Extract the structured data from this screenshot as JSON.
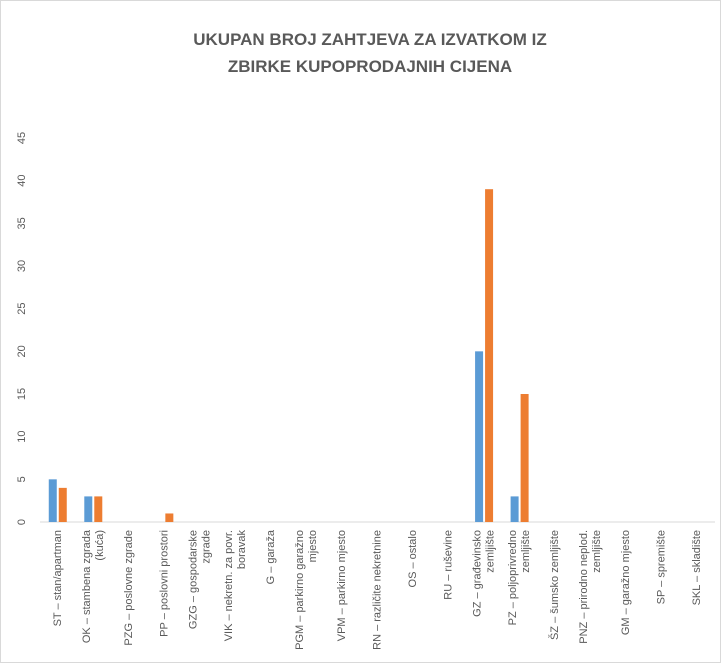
{
  "chart_data": {
    "type": "bar",
    "title": "UKUPAN BROJ ZAHTJEVA ZA IZVATKOM IZ ZBIRKE KUPOPRODAJNIH CIJENA",
    "categories": [
      "ST – stan/apartman",
      "OK – stambena zgrada (kuća)",
      "PZG – poslovne zgrade",
      "PP – poslovni prostori",
      "GZG – gospodarske zgrade",
      "VIK – nekretn. za povr. boravak",
      "G – garaža",
      "PGM – parkirno garažno mjesto",
      "VPM – parkirno mjesto",
      "RN – različite nekretnine",
      "OS – ostalo",
      "RU – ruševine",
      "GZ – građevinsko zemljište",
      "PZ – poljoprivredno zemljište",
      "ŠZ – šumsko zemljište",
      "PNZ – prirodno neplod. zemljište",
      "GM – garažno mjesto",
      "SP – spremište",
      "SKL – skladište"
    ],
    "series": [
      {
        "color": "#5b9bd5",
        "values": [
          5,
          3,
          0,
          0,
          0,
          0,
          0,
          0,
          0,
          0,
          0,
          0,
          20,
          3,
          0,
          0,
          0,
          0,
          0
        ]
      },
      {
        "color": "#ed7d31",
        "values": [
          4,
          3,
          0,
          1,
          0,
          0,
          0,
          0,
          0,
          0,
          0,
          0,
          39,
          15,
          0,
          0,
          0,
          0,
          0
        ]
      }
    ],
    "ylim": [
      0,
      45
    ],
    "yticks": [
      0,
      5,
      10,
      15,
      20,
      25,
      30,
      35,
      40,
      45
    ],
    "grid": false
  }
}
